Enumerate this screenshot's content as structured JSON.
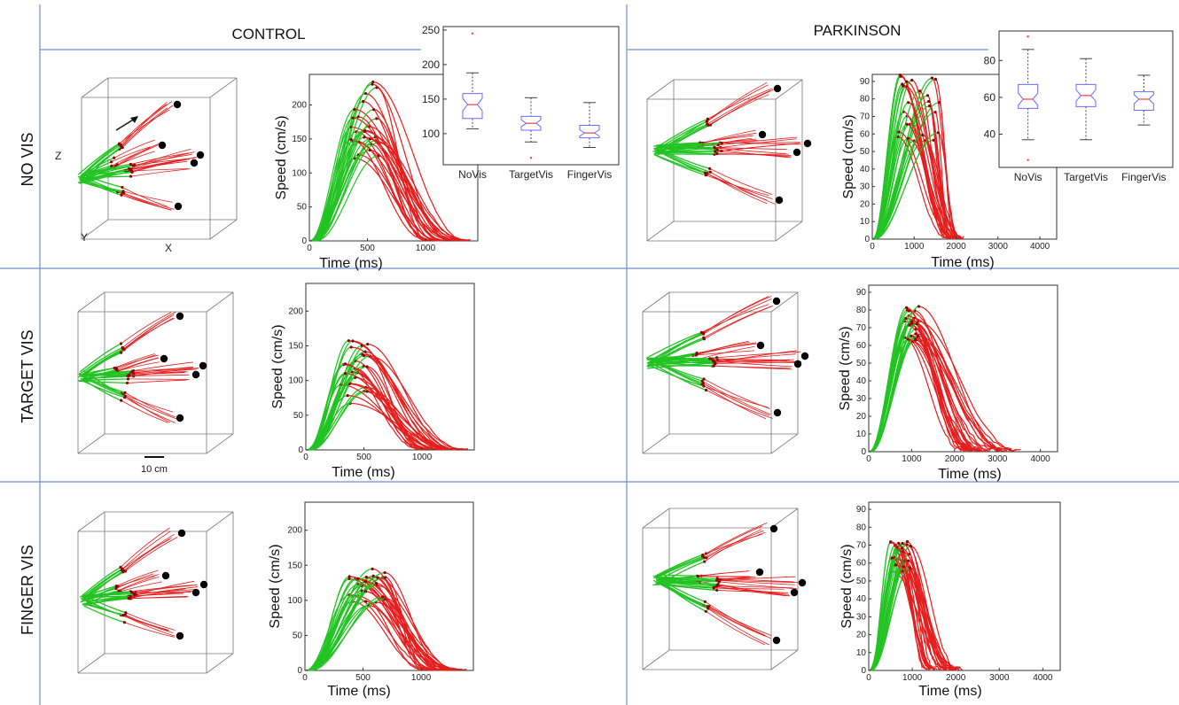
{
  "column_headers": [
    "CONTROL",
    "PARKINSON"
  ],
  "row_labels": [
    "NO VIS",
    "TARGET VIS",
    "FINGER VIS"
  ],
  "axis_letters": {
    "x": "X",
    "y": "Y",
    "z": "Z"
  },
  "scale_bar_label": "10 cm",
  "colors": {
    "acceleration": "#22c322",
    "deceleration": "#e41e1e",
    "targets": "#000000",
    "box": "#6b6bff",
    "median": "#ff3b3b",
    "separators": "#6f8fd0"
  },
  "chart_data": [
    {
      "type": "line",
      "id": "control-novis-speed",
      "xlabel": "Time (ms)",
      "ylabel": "Speed (cm/s)",
      "xlim": [
        0,
        1450
      ],
      "ylim": [
        0,
        245
      ],
      "xticks": [
        0,
        500,
        1000
      ],
      "yticks": [
        0,
        50,
        100,
        150,
        200
      ],
      "peak_speed_range": [
        110,
        240
      ],
      "peak_time_range": [
        350,
        600
      ],
      "end_time_range": [
        1000,
        1400
      ]
    },
    {
      "type": "line",
      "id": "parkinson-novis-speed",
      "xlabel": "Time (ms)",
      "ylabel": "Speed (cm/s)",
      "xlim": [
        0,
        4400
      ],
      "ylim": [
        0,
        94
      ],
      "xticks": [
        0,
        1000,
        2000,
        3000,
        4000
      ],
      "yticks": [
        0,
        10,
        20,
        30,
        40,
        50,
        60,
        70,
        80,
        90
      ],
      "peak_speed_range": [
        55,
        94
      ],
      "peak_time_range": [
        600,
        1600
      ],
      "end_time_range": [
        1800,
        2200
      ]
    },
    {
      "type": "line",
      "id": "control-targetvis-speed",
      "xlabel": "Time (ms)",
      "ylabel": "Speed (cm/s)",
      "xlim": [
        0,
        1450
      ],
      "ylim": [
        0,
        240
      ],
      "xticks": [
        0,
        500,
        1000
      ],
      "yticks": [
        0,
        50,
        100,
        150,
        200
      ],
      "peak_speed_range": [
        60,
        158
      ],
      "peak_time_range": [
        300,
        600
      ],
      "end_time_range": [
        1000,
        1400
      ]
    },
    {
      "type": "line",
      "id": "parkinson-targetvis-speed",
      "xlabel": "Time (ms)",
      "ylabel": "Speed (cm/s)",
      "xlim": [
        0,
        4400
      ],
      "ylim": [
        0,
        94
      ],
      "xticks": [
        0,
        1000,
        2000,
        3000,
        4000
      ],
      "yticks": [
        0,
        10,
        20,
        30,
        40,
        50,
        60,
        70,
        80,
        90
      ],
      "peak_speed_range": [
        60,
        82
      ],
      "peak_time_range": [
        800,
        1200
      ],
      "end_time_range": [
        2200,
        3600
      ]
    },
    {
      "type": "line",
      "id": "control-fingervis-speed",
      "xlabel": "Time (ms)",
      "ylabel": "Speed (cm/s)",
      "xlim": [
        0,
        1450
      ],
      "ylim": [
        0,
        240
      ],
      "xticks": [
        0,
        500,
        1000
      ],
      "yticks": [
        0,
        50,
        100,
        150,
        200
      ],
      "peak_speed_range": [
        90,
        145
      ],
      "peak_time_range": [
        380,
        700
      ],
      "end_time_range": [
        1000,
        1400
      ]
    },
    {
      "type": "line",
      "id": "parkinson-fingervis-speed",
      "xlabel": "Time (ms)",
      "ylabel": "Speed (cm/s)",
      "xlim": [
        0,
        4400
      ],
      "ylim": [
        0,
        94
      ],
      "xticks": [
        0,
        1000,
        2000,
        3000,
        4000
      ],
      "yticks": [
        0,
        10,
        20,
        30,
        40,
        50,
        60,
        70,
        80,
        90
      ],
      "peak_speed_range": [
        55,
        72
      ],
      "peak_time_range": [
        500,
        1000
      ],
      "end_time_range": [
        1300,
        2200
      ]
    },
    {
      "type": "box",
      "id": "control-peak-speed-box",
      "categories": [
        "NoVis",
        "TargetVis",
        "FingerVis"
      ],
      "ylim": [
        55,
        255
      ],
      "yticks": [
        100,
        150,
        200,
        250
      ],
      "boxes": [
        {
          "whisker_low": 107,
          "q1": 122,
          "median": 142,
          "q3": 158,
          "whisker_high": 188,
          "outliers": [
            245
          ]
        },
        {
          "whisker_low": 88,
          "q1": 105,
          "median": 115,
          "q3": 125,
          "whisker_high": 152,
          "outliers": [
            65
          ]
        },
        {
          "whisker_low": 80,
          "q1": 94,
          "median": 101,
          "q3": 112,
          "whisker_high": 145,
          "outliers": []
        }
      ]
    },
    {
      "type": "box",
      "id": "parkinson-peak-speed-box",
      "categories": [
        "NoVis",
        "TargetVis",
        "FingerVis"
      ],
      "ylim": [
        22,
        96
      ],
      "yticks": [
        40,
        60,
        80
      ],
      "boxes": [
        {
          "whisker_low": 37,
          "q1": 54,
          "median": 59,
          "q3": 67,
          "whisker_high": 86,
          "outliers": [
            26,
            93
          ]
        },
        {
          "whisker_low": 37,
          "q1": 55,
          "median": 61,
          "q3": 67,
          "whisker_high": 81,
          "outliers": []
        },
        {
          "whisker_low": 45,
          "q1": 53,
          "median": 59,
          "q3": 63,
          "whisker_high": 72,
          "outliers": []
        }
      ]
    }
  ]
}
